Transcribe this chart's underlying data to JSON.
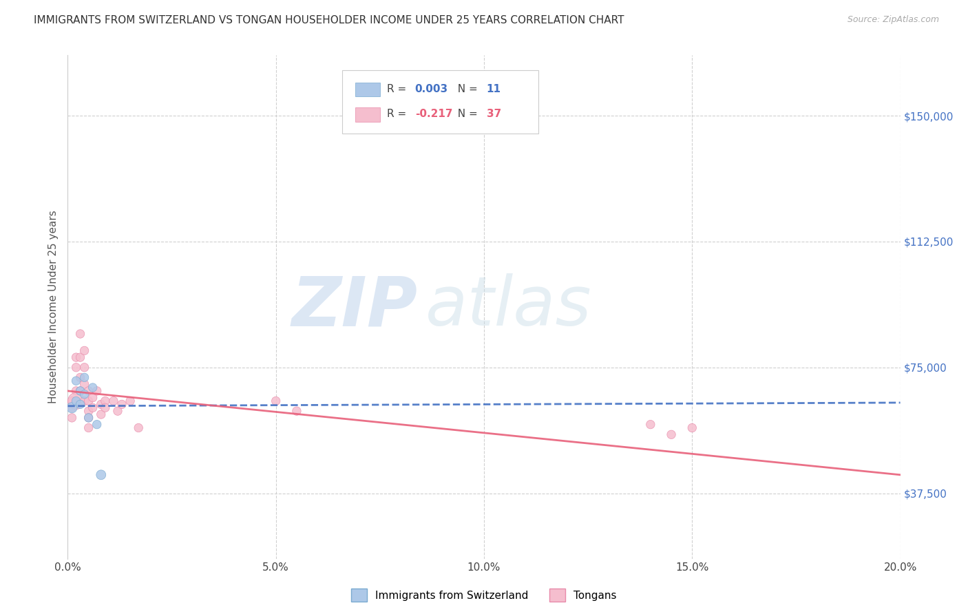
{
  "title": "IMMIGRANTS FROM SWITZERLAND VS TONGAN HOUSEHOLDER INCOME UNDER 25 YEARS CORRELATION CHART",
  "source": "Source: ZipAtlas.com",
  "ylabel": "Householder Income Under 25 years",
  "xlabel_ticks": [
    "0.0%",
    "5.0%",
    "10.0%",
    "15.0%",
    "20.0%"
  ],
  "xlabel_vals": [
    0.0,
    0.05,
    0.1,
    0.15,
    0.2
  ],
  "ytick_labels": [
    "$37,500",
    "$75,000",
    "$112,500",
    "$150,000"
  ],
  "ytick_vals": [
    37500,
    75000,
    112500,
    150000
  ],
  "xlim": [
    0.0,
    0.2
  ],
  "ylim": [
    18000,
    168000
  ],
  "swiss_R": 0.003,
  "swiss_N": 11,
  "tongan_R": -0.217,
  "tongan_N": 37,
  "swiss_color": "#adc8e8",
  "swiss_edge": "#7aaad0",
  "tongan_color": "#f5bece",
  "tongan_edge": "#e88aaa",
  "swiss_line_color": "#4472c4",
  "tongan_line_color": "#e8607a",
  "legend_box_swiss": "#adc8e8",
  "legend_box_tongan": "#f5bece",
  "watermark_zip": "ZIP",
  "watermark_atlas": "atlas",
  "swiss_x": [
    0.001,
    0.002,
    0.002,
    0.003,
    0.003,
    0.004,
    0.004,
    0.005,
    0.006,
    0.007,
    0.008
  ],
  "swiss_y": [
    63000,
    71000,
    65000,
    68000,
    64000,
    72000,
    67000,
    60000,
    69000,
    58000,
    43000
  ],
  "swiss_size": [
    120,
    80,
    80,
    80,
    80,
    80,
    80,
    80,
    80,
    80,
    100
  ],
  "tongan_x": [
    0.001,
    0.001,
    0.001,
    0.002,
    0.002,
    0.002,
    0.002,
    0.003,
    0.003,
    0.003,
    0.003,
    0.004,
    0.004,
    0.004,
    0.004,
    0.005,
    0.005,
    0.005,
    0.005,
    0.005,
    0.006,
    0.006,
    0.007,
    0.008,
    0.008,
    0.009,
    0.009,
    0.011,
    0.012,
    0.013,
    0.015,
    0.017,
    0.05,
    0.055,
    0.14,
    0.145,
    0.15
  ],
  "tongan_y": [
    65000,
    63000,
    60000,
    78000,
    75000,
    68000,
    65000,
    85000,
    78000,
    72000,
    68000,
    80000,
    75000,
    70000,
    65000,
    68000,
    65000,
    62000,
    60000,
    57000,
    66000,
    63000,
    68000,
    64000,
    61000,
    65000,
    63000,
    65000,
    62000,
    64000,
    65000,
    57000,
    65000,
    62000,
    58000,
    55000,
    57000
  ],
  "tongan_size": [
    80,
    80,
    80,
    80,
    80,
    80,
    300,
    80,
    80,
    80,
    80,
    80,
    80,
    80,
    80,
    80,
    80,
    80,
    80,
    80,
    80,
    80,
    80,
    80,
    80,
    80,
    80,
    80,
    80,
    80,
    80,
    80,
    80,
    80,
    80,
    80,
    80
  ],
  "background_color": "#ffffff",
  "grid_color": "#d0d0d0"
}
